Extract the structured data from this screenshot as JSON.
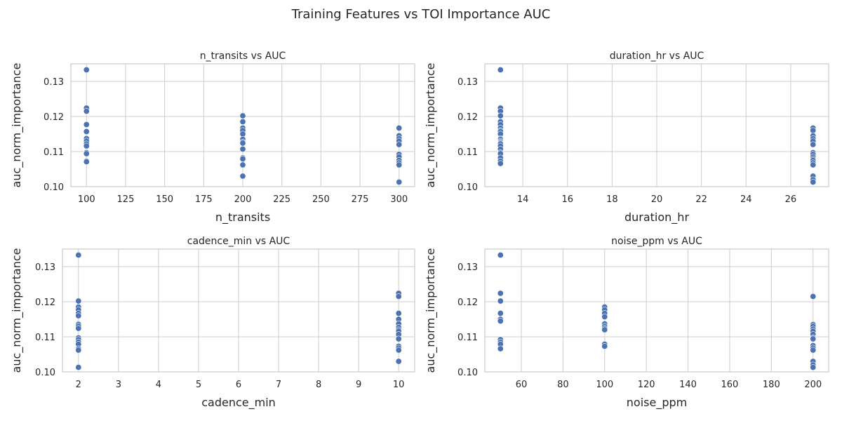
{
  "figure": {
    "title": "Training Features vs TOI Importance AUC",
    "point_color": "#4c72b0",
    "grid": true
  },
  "chart_data": [
    {
      "type": "scatter",
      "title": "n_transits vs AUC",
      "xlabel": "n_transits",
      "ylabel": "auc_norm_importance",
      "xlim": [
        90,
        310
      ],
      "ylim": [
        0.1,
        0.135
      ],
      "xticks": [
        100,
        125,
        150,
        175,
        200,
        225,
        250,
        275,
        300
      ],
      "yticks": [
        0.1,
        0.11,
        0.12,
        0.13
      ],
      "ytick_labels": [
        "0.10",
        "0.11",
        "0.12",
        "0.13"
      ],
      "points": [
        [
          100,
          0.1333
        ],
        [
          100,
          0.1224
        ],
        [
          100,
          0.1215
        ],
        [
          100,
          0.1177
        ],
        [
          100,
          0.1157
        ],
        [
          100,
          0.1137
        ],
        [
          100,
          0.113
        ],
        [
          100,
          0.1122
        ],
        [
          100,
          0.1116
        ],
        [
          100,
          0.1097
        ],
        [
          100,
          0.1094
        ],
        [
          100,
          0.1073
        ],
        [
          100,
          0.1071
        ],
        [
          200,
          0.1202
        ],
        [
          200,
          0.1185
        ],
        [
          200,
          0.1167
        ],
        [
          200,
          0.116
        ],
        [
          200,
          0.115
        ],
        [
          200,
          0.1135
        ],
        [
          200,
          0.1127
        ],
        [
          200,
          0.1124
        ],
        [
          200,
          0.1107
        ],
        [
          200,
          0.1082
        ],
        [
          200,
          0.1079
        ],
        [
          200,
          0.1062
        ],
        [
          200,
          0.103
        ],
        [
          300,
          0.1167
        ],
        [
          300,
          0.1145
        ],
        [
          300,
          0.1137
        ],
        [
          300,
          0.113
        ],
        [
          300,
          0.112
        ],
        [
          300,
          0.1092
        ],
        [
          300,
          0.1085
        ],
        [
          300,
          0.1075
        ],
        [
          300,
          0.1068
        ],
        [
          300,
          0.1062
        ],
        [
          300,
          0.1013
        ]
      ]
    },
    {
      "type": "scatter",
      "title": "duration_hr vs AUC",
      "xlabel": "duration_hr",
      "ylabel": "auc_norm_importance",
      "xlim": [
        12.3,
        27.7
      ],
      "ylim": [
        0.1,
        0.135
      ],
      "xticks": [
        14,
        16,
        18,
        20,
        22,
        24,
        26
      ],
      "yticks": [
        0.1,
        0.11,
        0.12,
        0.13
      ],
      "ytick_labels": [
        "0.10",
        "0.11",
        "0.12",
        "0.13"
      ],
      "points": [
        [
          13,
          0.1333
        ],
        [
          13,
          0.1224
        ],
        [
          13,
          0.1215
        ],
        [
          13,
          0.1202
        ],
        [
          13,
          0.1185
        ],
        [
          13,
          0.1177
        ],
        [
          13,
          0.1167
        ],
        [
          13,
          0.116
        ],
        [
          13,
          0.1157
        ],
        [
          13,
          0.115
        ],
        [
          13,
          0.1137
        ],
        [
          13,
          0.1135
        ],
        [
          13,
          0.113
        ],
        [
          13,
          0.1127
        ],
        [
          13,
          0.1124
        ],
        [
          13,
          0.1122
        ],
        [
          13,
          0.1116
        ],
        [
          13,
          0.1107
        ],
        [
          13,
          0.1097
        ],
        [
          13,
          0.1094
        ],
        [
          13,
          0.1082
        ],
        [
          13,
          0.1073
        ],
        [
          13,
          0.1066
        ],
        [
          27,
          0.1167
        ],
        [
          27,
          0.116
        ],
        [
          27,
          0.1145
        ],
        [
          27,
          0.1137
        ],
        [
          27,
          0.113
        ],
        [
          27,
          0.112
        ],
        [
          27,
          0.1097
        ],
        [
          27,
          0.1092
        ],
        [
          27,
          0.1085
        ],
        [
          27,
          0.1079
        ],
        [
          27,
          0.1075
        ],
        [
          27,
          0.1068
        ],
        [
          27,
          0.1062
        ],
        [
          27,
          0.103
        ],
        [
          27,
          0.102
        ],
        [
          27,
          0.1013
        ]
      ]
    },
    {
      "type": "scatter",
      "title": "cadence_min vs AUC",
      "xlabel": "cadence_min",
      "ylabel": "auc_norm_importance",
      "xlim": [
        1.6,
        10.4
      ],
      "ylim": [
        0.1,
        0.135
      ],
      "xticks": [
        2,
        3,
        4,
        5,
        6,
        7,
        8,
        9,
        10
      ],
      "yticks": [
        0.1,
        0.11,
        0.12,
        0.13
      ],
      "ytick_labels": [
        "0.10",
        "0.11",
        "0.12",
        "0.13"
      ],
      "points": [
        [
          2,
          0.1333
        ],
        [
          2,
          0.1202
        ],
        [
          2,
          0.1185
        ],
        [
          2,
          0.1177
        ],
        [
          2,
          0.1167
        ],
        [
          2,
          0.116
        ],
        [
          2,
          0.1137
        ],
        [
          2,
          0.1135
        ],
        [
          2,
          0.113
        ],
        [
          2,
          0.1124
        ],
        [
          2,
          0.1097
        ],
        [
          2,
          0.1092
        ],
        [
          2,
          0.1085
        ],
        [
          2,
          0.1079
        ],
        [
          2,
          0.1066
        ],
        [
          2,
          0.1062
        ],
        [
          2,
          0.1013
        ],
        [
          10,
          0.1224
        ],
        [
          10,
          0.1215
        ],
        [
          10,
          0.1167
        ],
        [
          10,
          0.115
        ],
        [
          10,
          0.1137
        ],
        [
          10,
          0.1127
        ],
        [
          10,
          0.112
        ],
        [
          10,
          0.1116
        ],
        [
          10,
          0.1107
        ],
        [
          10,
          0.1094
        ],
        [
          10,
          0.1073
        ],
        [
          10,
          0.1068
        ],
        [
          10,
          0.1062
        ],
        [
          10,
          0.103
        ]
      ]
    },
    {
      "type": "scatter",
      "title": "noise_ppm vs AUC",
      "xlabel": "noise_ppm",
      "ylabel": "auc_norm_importance",
      "xlim": [
        42.5,
        207.5
      ],
      "ylim": [
        0.1,
        0.135
      ],
      "xticks": [
        60,
        80,
        100,
        120,
        140,
        160,
        180,
        200
      ],
      "yticks": [
        0.1,
        0.11,
        0.12,
        0.13
      ],
      "ytick_labels": [
        "0.10",
        "0.11",
        "0.12",
        "0.13"
      ],
      "points": [
        [
          50,
          0.1333
        ],
        [
          50,
          0.1224
        ],
        [
          50,
          0.1202
        ],
        [
          50,
          0.1167
        ],
        [
          50,
          0.115
        ],
        [
          50,
          0.1145
        ],
        [
          50,
          0.1092
        ],
        [
          50,
          0.1085
        ],
        [
          50,
          0.1079
        ],
        [
          50,
          0.1066
        ],
        [
          100,
          0.1185
        ],
        [
          100,
          0.1177
        ],
        [
          100,
          0.1167
        ],
        [
          100,
          0.1157
        ],
        [
          100,
          0.1137
        ],
        [
          100,
          0.113
        ],
        [
          100,
          0.1124
        ],
        [
          100,
          0.112
        ],
        [
          100,
          0.1079
        ],
        [
          100,
          0.1073
        ],
        [
          200,
          0.1215
        ],
        [
          200,
          0.1135
        ],
        [
          200,
          0.113
        ],
        [
          200,
          0.1122
        ],
        [
          200,
          0.1116
        ],
        [
          200,
          0.1107
        ],
        [
          200,
          0.1097
        ],
        [
          200,
          0.1094
        ],
        [
          200,
          0.1075
        ],
        [
          200,
          0.1068
        ],
        [
          200,
          0.1062
        ],
        [
          200,
          0.103
        ],
        [
          200,
          0.102
        ],
        [
          200,
          0.1013
        ]
      ]
    }
  ]
}
